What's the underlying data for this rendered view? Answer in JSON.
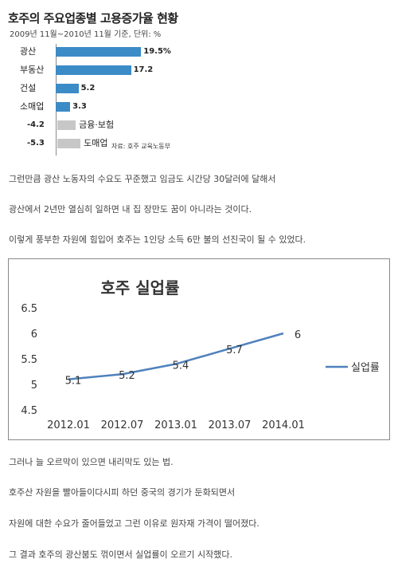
{
  "bar_chart": {
    "title": "호주의 주요업종별 고용증가율 현황",
    "subtitle": "2009년 11월~2010년 11월 기준, 단위: %",
    "source": "자료: 호주 교육노동부",
    "colors": {
      "positive": "#3b8bc7",
      "negative": "#c7c7c7"
    }
  },
  "paragraphs_top": [
    "그런만큼 광산 노동자의 수요도 꾸준했고 임금도 시간당 30달러에 달해서",
    "광산에서 2년만 열심히 일하면 내 집 장만도 꿈이 아니라는 것이다.",
    "이렇게 풍부한 자원에 힘입어 호주는 1인당 소득 6만 불의 선진국이 될 수 있었다."
  ],
  "line_chart": {
    "color": "#4f81bd"
  },
  "paragraphs_bottom": [
    "그러나 늘 오르막이 있으면 내리막도 있는 법.",
    "호주산 자원을 빨아들이다시피 하던 중국의 경기가 둔화되면서",
    "자원에 대한 수요가 줄어들었고 그런 이유로 원자재 가격이 떨어졌다.",
    "그 결과 호주의 광산붐도 꺾이면서 실업률이 오르기 시작했다."
  ],
  "chart_data": [
    {
      "type": "bar",
      "title": "호주의 주요업종별 고용증가율 현황",
      "subtitle": "2009년 11월~2010년 11월 기준, 단위: %",
      "categories": [
        "광산",
        "부동산",
        "건설",
        "소매업",
        "금융·보험",
        "도매업"
      ],
      "values": [
        19.5,
        17.2,
        5.2,
        3.3,
        -4.2,
        -5.3
      ],
      "value_labels": [
        "19.5%",
        "17.2",
        "5.2",
        "3.3",
        "-4.2",
        "-5.3"
      ]
    },
    {
      "type": "line",
      "title": "호주 실업률",
      "x": [
        "2012.01",
        "2012.07",
        "2013.01",
        "2013.07",
        "2014.01"
      ],
      "yticks": [
        "4.5",
        "5",
        "5.5",
        "6",
        "6.5"
      ],
      "ylim": [
        4.5,
        6.5
      ],
      "grid": false,
      "legend": "right",
      "series": [
        {
          "name": "실업률",
          "values": [
            5.1,
            5.2,
            5.4,
            5.7,
            6
          ],
          "labels": [
            "5.1",
            "5.2",
            "5.4",
            "5.7",
            "6"
          ]
        }
      ]
    }
  ]
}
